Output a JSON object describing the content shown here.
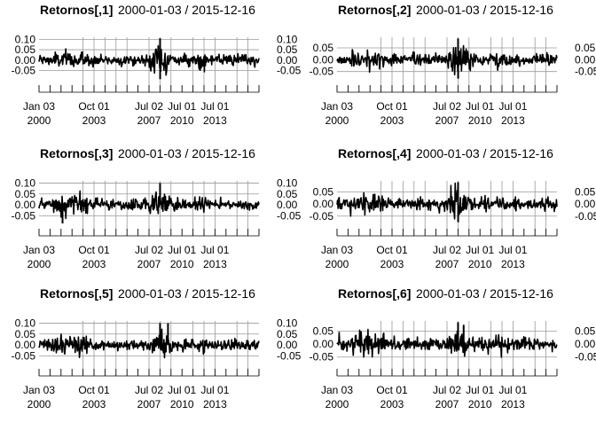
{
  "chart_data": [
    {
      "type": "line",
      "title_main": "Retornos[,1]",
      "title_range": "2000-01-03 / 2015-12-16",
      "x_tick_labels": [
        [
          "Jan 03",
          "2000"
        ],
        [
          "Oct 01",
          "2003"
        ],
        [
          "Jul 02",
          "2007"
        ],
        [
          "Jul 01",
          "2010"
        ],
        [
          "Jul 01",
          "2013"
        ]
      ],
      "x_range": [
        "2000-01-03",
        "2015-12-16"
      ],
      "y_tick_labels": [
        "0.10",
        "0.05",
        "0.00",
        "-0.05"
      ],
      "y_ticks": [
        0.1,
        0.05,
        0.0,
        -0.05
      ],
      "ylim": [
        -0.095,
        0.11
      ],
      "right_axis_labels": [
        "0.10",
        "0.05",
        "0.00",
        "-0.05"
      ],
      "approx_extremes": [
        {
          "date": "2008-10-13",
          "value": 0.105
        },
        {
          "date": "2008-10-15",
          "value": -0.092
        }
      ],
      "grid": true,
      "series_color": "#000000"
    },
    {
      "type": "line",
      "title_main": "Retornos[,2]",
      "title_range": "2000-01-03 / 2015-12-16",
      "x_tick_labels": [
        [
          "Jan 03",
          "2000"
        ],
        [
          "Oct 01",
          "2003"
        ],
        [
          "Jul 02",
          "2007"
        ],
        [
          "Jul 01",
          "2010"
        ],
        [
          "Jul 01",
          "2013"
        ]
      ],
      "x_range": [
        "2000-01-03",
        "2015-12-16"
      ],
      "y_tick_labels": [
        "0.05",
        "0.00",
        "-0.05"
      ],
      "y_ticks": [
        0.05,
        0.0,
        -0.05
      ],
      "ylim": [
        -0.085,
        0.095
      ],
      "right_axis_labels": [
        "0.05",
        "0.00",
        "-0.05"
      ],
      "approx_extremes": [
        {
          "date": "2008-10-13",
          "value": 0.09
        },
        {
          "date": "2008-10-15",
          "value": -0.08
        }
      ],
      "grid": true,
      "series_color": "#000000"
    },
    {
      "type": "line",
      "title_main": "Retornos[,3]",
      "title_range": "2000-01-03 / 2015-12-16",
      "x_tick_labels": [
        [
          "Jan 03",
          "2000"
        ],
        [
          "Oct 01",
          "2003"
        ],
        [
          "Jul 02",
          "2007"
        ],
        [
          "Jul 01",
          "2010"
        ],
        [
          "Jul 01",
          "2013"
        ]
      ],
      "x_range": [
        "2000-01-03",
        "2015-12-16"
      ],
      "y_tick_labels": [
        "0.10",
        "0.05",
        "0.00",
        "-0.05"
      ],
      "y_ticks": [
        0.1,
        0.05,
        0.0,
        -0.05
      ],
      "ylim": [
        -0.085,
        0.11
      ],
      "right_axis_labels": [
        "0.10",
        "0.05",
        "0.00",
        "-0.05"
      ],
      "approx_extremes": [
        {
          "date": "2008-10-13",
          "value": 0.1
        },
        {
          "date": "2001-09-17",
          "value": -0.085
        }
      ],
      "grid": true,
      "series_color": "#000000"
    },
    {
      "type": "line",
      "title_main": "Retornos[,4]",
      "title_range": "2000-01-03 / 2015-12-16",
      "x_tick_labels": [
        [
          "Jan 03",
          "2000"
        ],
        [
          "Oct 01",
          "2003"
        ],
        [
          "Jul 02",
          "2007"
        ],
        [
          "Jul 01",
          "2010"
        ],
        [
          "Jul 01",
          "2013"
        ]
      ],
      "x_range": [
        "2000-01-03",
        "2015-12-16"
      ],
      "y_tick_labels": [
        "0.05",
        "0.00",
        "-0.05"
      ],
      "y_ticks": [
        0.05,
        0.0,
        -0.05
      ],
      "ylim": [
        -0.08,
        0.095
      ],
      "right_axis_labels": [
        "0.05",
        "0.00",
        "-0.05"
      ],
      "approx_extremes": [
        {
          "date": "2008-10-13",
          "value": 0.09
        },
        {
          "date": "2008-10-15",
          "value": -0.075
        }
      ],
      "grid": true,
      "series_color": "#000000"
    },
    {
      "type": "line",
      "title_main": "Retornos[,5]",
      "title_range": "2000-01-03 / 2015-12-16",
      "x_tick_labels": [
        [
          "Jan 03",
          "2000"
        ],
        [
          "Oct 01",
          "2003"
        ],
        [
          "Jul 02",
          "2007"
        ],
        [
          "Jul 01",
          "2010"
        ],
        [
          "Jul 01",
          "2013"
        ]
      ],
      "x_range": [
        "2000-01-03",
        "2015-12-16"
      ],
      "y_tick_labels": [
        "0.10",
        "0.05",
        "0.00",
        "-0.05"
      ],
      "y_ticks": [
        0.1,
        0.05,
        0.0,
        -0.05
      ],
      "ylim": [
        -0.085,
        0.11
      ],
      "right_axis_labels": [
        "0.10",
        "0.05",
        "0.00",
        "-0.05"
      ],
      "approx_extremes": [
        {
          "date": "2008-10-13",
          "value": 0.1
        },
        {
          "date": "2009-05-11",
          "value": 0.1
        }
      ],
      "grid": true,
      "series_color": "#000000"
    },
    {
      "type": "line",
      "title_main": "Retornos[,6]",
      "title_range": "2000-01-03 / 2015-12-16",
      "x_tick_labels": [
        [
          "Jan 03",
          "2000"
        ],
        [
          "Oct 01",
          "2003"
        ],
        [
          "Jul 02",
          "2007"
        ],
        [
          "Jul 01",
          "2010"
        ],
        [
          "Jul 01",
          "2013"
        ]
      ],
      "x_range": [
        "2000-01-03",
        "2015-12-16"
      ],
      "y_tick_labels": [
        "0.05",
        "0.00",
        "-0.05"
      ],
      "y_ticks": [
        0.05,
        0.0,
        -0.05
      ],
      "ylim": [
        -0.075,
        0.09
      ],
      "right_axis_labels": [
        "0.05",
        "0.00",
        "-0.05"
      ],
      "approx_extremes": [
        {
          "date": "2008-10-13",
          "value": 0.085
        },
        {
          "date": "2009-03-10",
          "value": 0.075
        }
      ],
      "grid": true,
      "series_color": "#000000"
    }
  ]
}
